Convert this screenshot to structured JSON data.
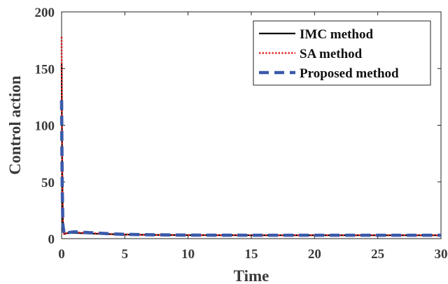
{
  "chart_data": {
    "type": "line",
    "xlabel": "Time",
    "ylabel": "Control action",
    "xlim": [
      0,
      30
    ],
    "ylim": [
      0,
      200
    ],
    "xticks": [
      0,
      5,
      10,
      15,
      20,
      25,
      30
    ],
    "yticks": [
      0,
      50,
      100,
      150,
      200
    ],
    "grid": false,
    "legend_position": "top-right",
    "series": [
      {
        "name": "IMC method",
        "color": "#000000",
        "style": "solid",
        "x": [
          0,
          0.02,
          0.05,
          0.1,
          0.2,
          0.4,
          0.7,
          1,
          1.5,
          2,
          3,
          4,
          5,
          7,
          10,
          15,
          20,
          25,
          30
        ],
        "y": [
          155,
          110,
          60,
          15,
          4,
          4.8,
          5,
          5,
          4.8,
          4.6,
          4.2,
          3.9,
          3.6,
          3.3,
          3.1,
          3,
          3,
          3,
          3
        ]
      },
      {
        "name": "SA method",
        "color": "#e02020",
        "style": "dotted",
        "x": [
          0,
          0.02,
          0.05,
          0.1,
          0.2,
          0.4,
          0.7,
          1,
          1.5,
          2,
          3,
          4,
          5,
          7,
          10,
          15,
          20,
          25,
          30
        ],
        "y": [
          178,
          120,
          65,
          15,
          4,
          4.8,
          5.3,
          5.5,
          5.3,
          5,
          4.5,
          4,
          3.7,
          3.3,
          3.1,
          3,
          3,
          3,
          3
        ]
      },
      {
        "name": "Proposed method",
        "color": "#3a5aaa",
        "style": "dashed",
        "x": [
          0,
          0.02,
          0.05,
          0.1,
          0.2,
          0.4,
          0.7,
          1,
          1.5,
          2,
          3,
          4,
          5,
          7,
          10,
          15,
          20,
          25,
          30
        ],
        "y": [
          122,
          85,
          45,
          12,
          4,
          5,
          5.6,
          6,
          5.8,
          5.4,
          4.8,
          4.2,
          3.8,
          3.4,
          3.1,
          3,
          3,
          3,
          3
        ]
      }
    ]
  }
}
